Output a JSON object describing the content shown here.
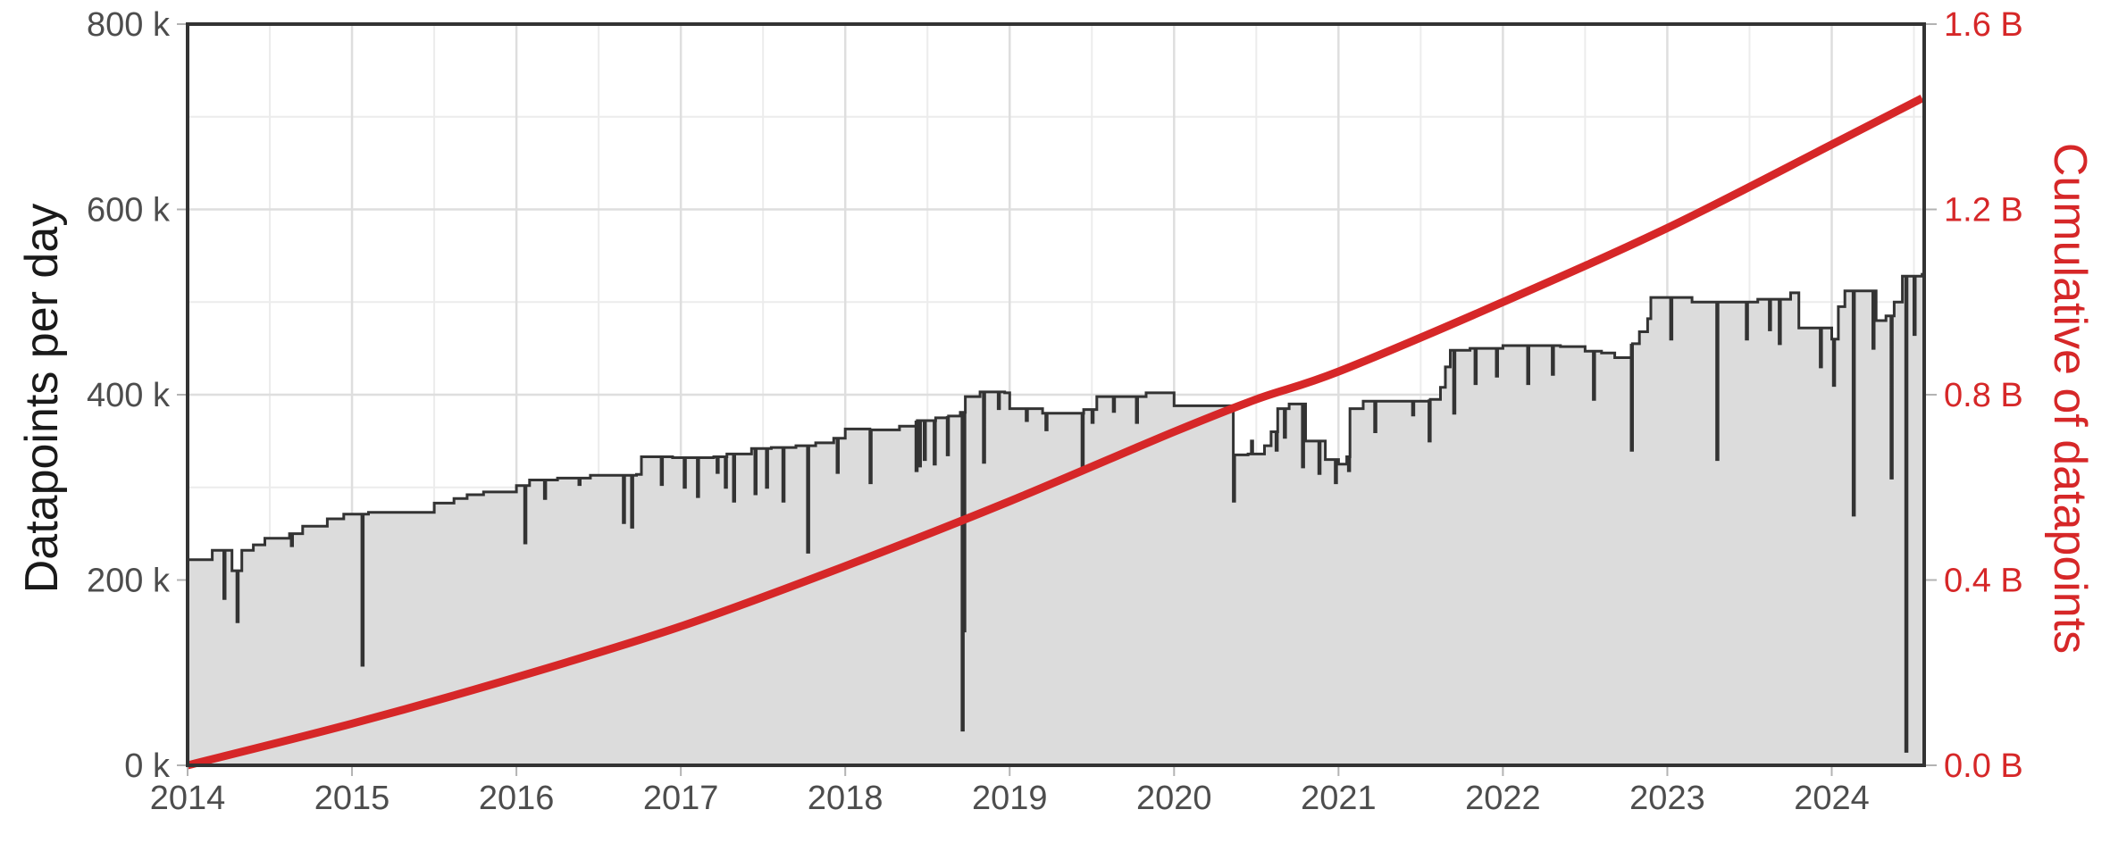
{
  "colors": {
    "background": "#ffffff",
    "area_fill": "#dcdcdc",
    "area_line": "#333333",
    "cumulative_line": "#d62728",
    "grid_major": "#dedede",
    "grid_minor": "#ececec",
    "frame": "#333333",
    "tick_text": "#4d4d4d",
    "right_axis_text": "#d62728"
  },
  "chart_data": {
    "type": "area+line",
    "title": "",
    "xlabel": "",
    "ylabel": "Datapoints per day",
    "ylabel_right": "Cumulative of datapoints",
    "xlim": [
      2014.0,
      2024.55
    ],
    "ylim": [
      0,
      800000
    ],
    "ylim_right": [
      0,
      1600000000
    ],
    "grid": true,
    "legend": null,
    "x_ticks": [
      "2014",
      "2015",
      "2016",
      "2017",
      "2018",
      "2019",
      "2020",
      "2021",
      "2022",
      "2023",
      "2024"
    ],
    "x_tick_values": [
      2014,
      2015,
      2016,
      2017,
      2018,
      2019,
      2020,
      2021,
      2022,
      2023,
      2024
    ],
    "y_ticks": [
      "0 k",
      "200 k",
      "400 k",
      "600 k",
      "800 k"
    ],
    "y_tick_values": [
      0,
      200000,
      400000,
      600000,
      800000
    ],
    "y_ticks_right": [
      "0.0 B",
      "0.4 B",
      "0.8 B",
      "1.2 B",
      "1.6 B"
    ],
    "y_tick_values_right": [
      0,
      400000000,
      800000000,
      1200000000,
      1600000000
    ],
    "series": [
      {
        "name": "Datapoints per day",
        "axis": "left",
        "type": "step-area",
        "unit": "k",
        "steps": [
          [
            2014.0,
            222
          ],
          [
            2014.15,
            232
          ],
          [
            2014.27,
            210
          ],
          [
            2014.33,
            232
          ],
          [
            2014.4,
            238
          ],
          [
            2014.47,
            245
          ],
          [
            2014.62,
            250
          ],
          [
            2014.7,
            258
          ],
          [
            2014.85,
            266
          ],
          [
            2014.95,
            271
          ],
          [
            2015.1,
            273
          ],
          [
            2015.48,
            273
          ],
          [
            2015.5,
            283
          ],
          [
            2015.62,
            288
          ],
          [
            2015.7,
            292
          ],
          [
            2015.8,
            295
          ],
          [
            2016.0,
            302
          ],
          [
            2016.08,
            308
          ],
          [
            2016.25,
            310
          ],
          [
            2016.45,
            313
          ],
          [
            2016.73,
            314
          ],
          [
            2016.76,
            333
          ],
          [
            2016.95,
            332
          ],
          [
            2017.2,
            333
          ],
          [
            2017.28,
            336
          ],
          [
            2017.43,
            342
          ],
          [
            2017.55,
            343
          ],
          [
            2017.7,
            345
          ],
          [
            2017.82,
            348
          ],
          [
            2017.93,
            353
          ],
          [
            2018.0,
            363
          ],
          [
            2018.15,
            362
          ],
          [
            2018.33,
            366
          ],
          [
            2018.43,
            372
          ],
          [
            2018.55,
            375
          ],
          [
            2018.62,
            377
          ],
          [
            2018.7,
            381
          ],
          [
            2018.73,
            398
          ],
          [
            2018.82,
            403
          ],
          [
            2018.97,
            402
          ],
          [
            2019.0,
            385
          ],
          [
            2019.2,
            380
          ],
          [
            2019.45,
            384
          ],
          [
            2019.53,
            398
          ],
          [
            2019.7,
            398
          ],
          [
            2019.83,
            402
          ],
          [
            2020.0,
            388
          ],
          [
            2020.2,
            388
          ],
          [
            2020.35,
            388
          ],
          [
            2020.36,
            335
          ],
          [
            2020.45,
            336
          ],
          [
            2020.55,
            345
          ],
          [
            2020.59,
            360
          ],
          [
            2020.63,
            385
          ],
          [
            2020.7,
            390
          ],
          [
            2020.8,
            350
          ],
          [
            2020.92,
            330
          ],
          [
            2021.0,
            325
          ],
          [
            2021.05,
            333
          ],
          [
            2021.07,
            385
          ],
          [
            2021.15,
            393
          ],
          [
            2021.55,
            395
          ],
          [
            2021.62,
            408
          ],
          [
            2021.65,
            430
          ],
          [
            2021.68,
            448
          ],
          [
            2021.8,
            450
          ],
          [
            2022.0,
            453
          ],
          [
            2022.35,
            452
          ],
          [
            2022.5,
            447
          ],
          [
            2022.6,
            445
          ],
          [
            2022.68,
            440
          ],
          [
            2022.78,
            455
          ],
          [
            2022.83,
            468
          ],
          [
            2022.88,
            482
          ],
          [
            2022.9,
            505
          ],
          [
            2023.15,
            500
          ],
          [
            2023.4,
            500
          ],
          [
            2023.55,
            503
          ],
          [
            2023.75,
            510
          ],
          [
            2023.8,
            472
          ],
          [
            2023.95,
            472
          ],
          [
            2024.0,
            460
          ],
          [
            2024.04,
            495
          ],
          [
            2024.08,
            512
          ],
          [
            2024.2,
            512
          ],
          [
            2024.27,
            480
          ],
          [
            2024.3,
            480
          ],
          [
            2024.33,
            485
          ],
          [
            2024.38,
            500
          ],
          [
            2024.43,
            528
          ],
          [
            2024.55,
            530
          ]
        ],
        "dips": [
          [
            2014.22,
            180
          ],
          [
            2014.3,
            155
          ],
          [
            2014.63,
            237
          ],
          [
            2015.06,
            108
          ],
          [
            2016.05,
            240
          ],
          [
            2016.17,
            288
          ],
          [
            2016.38,
            303
          ],
          [
            2016.65,
            262
          ],
          [
            2016.7,
            257
          ],
          [
            2016.88,
            303
          ],
          [
            2017.02,
            300
          ],
          [
            2017.1,
            290
          ],
          [
            2017.22,
            316
          ],
          [
            2017.27,
            300
          ],
          [
            2017.32,
            285
          ],
          [
            2017.45,
            293
          ],
          [
            2017.52,
            300
          ],
          [
            2017.62,
            285
          ],
          [
            2017.77,
            230
          ],
          [
            2017.95,
            316
          ],
          [
            2018.15,
            305
          ],
          [
            2018.43,
            318
          ],
          [
            2018.45,
            323
          ],
          [
            2018.48,
            330
          ],
          [
            2018.54,
            325
          ],
          [
            2018.62,
            335
          ],
          [
            2018.71,
            38
          ],
          [
            2018.72,
            145
          ],
          [
            2018.84,
            327
          ],
          [
            2018.93,
            385
          ],
          [
            2019.1,
            372
          ],
          [
            2019.22,
            362
          ],
          [
            2019.44,
            320
          ],
          [
            2019.5,
            370
          ],
          [
            2019.63,
            382
          ],
          [
            2019.77,
            370
          ],
          [
            2020.36,
            285
          ],
          [
            2020.47,
            350
          ],
          [
            2020.62,
            340
          ],
          [
            2020.67,
            354
          ],
          [
            2020.78,
            322
          ],
          [
            2020.88,
            315
          ],
          [
            2020.98,
            305
          ],
          [
            2021.06,
            318
          ],
          [
            2021.22,
            360
          ],
          [
            2021.45,
            378
          ],
          [
            2021.55,
            350
          ],
          [
            2021.7,
            380
          ],
          [
            2021.83,
            412
          ],
          [
            2021.96,
            420
          ],
          [
            2022.15,
            412
          ],
          [
            2022.3,
            422
          ],
          [
            2022.55,
            395
          ],
          [
            2022.78,
            340
          ],
          [
            2023.02,
            460
          ],
          [
            2023.3,
            330
          ],
          [
            2023.48,
            460
          ],
          [
            2023.62,
            470
          ],
          [
            2023.68,
            455
          ],
          [
            2023.93,
            430
          ],
          [
            2024.01,
            410
          ],
          [
            2024.13,
            270
          ],
          [
            2024.25,
            450
          ],
          [
            2024.36,
            310
          ],
          [
            2024.45,
            15
          ],
          [
            2024.5,
            465
          ]
        ]
      },
      {
        "name": "Cumulative of datapoints",
        "axis": "right",
        "type": "line",
        "unit": "B",
        "x": [
          2014.0,
          2015.0,
          2016.0,
          2017.0,
          2018.0,
          2019.0,
          2020.0,
          2020.5,
          2021.0,
          2022.0,
          2023.0,
          2024.0,
          2024.55
        ],
        "values": [
          0.0,
          0.09,
          0.19,
          0.3,
          0.43,
          0.57,
          0.72,
          0.79,
          0.85,
          1.0,
          1.16,
          1.34,
          1.44
        ]
      }
    ]
  }
}
